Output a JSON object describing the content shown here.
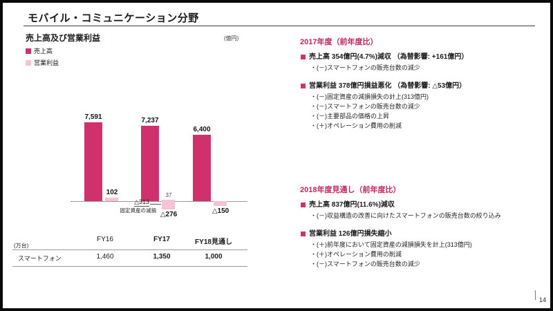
{
  "slide": {
    "title": "モバイル・コミュニケーション分野",
    "page_number": "14"
  },
  "chart": {
    "title": "売上高及び営業利益",
    "unit_label": "(億円)",
    "legend": [
      "売上高",
      "営業利益"
    ]
  },
  "chart_data": {
    "type": "bar",
    "title": "売上高及び営業利益",
    "unit": "億円",
    "categories": [
      "FY16",
      "FY17",
      "FY18見通し"
    ],
    "series": [
      {
        "name": "売上高",
        "color": "#d0316d",
        "values": [
          7591,
          7237,
          6400
        ],
        "labels": [
          "7,591",
          "7,237",
          "6,400"
        ]
      },
      {
        "name": "営業利益",
        "color": "#f5c3d2",
        "values": [
          102,
          -276,
          -150
        ],
        "labels": [
          "102",
          "△276",
          "△150"
        ]
      }
    ],
    "fy17_detail": {
      "pre_impairment_value": 37,
      "pre_impairment_label": "37",
      "impairment_label": "△313",
      "impairment_note": "固定資産の減損"
    },
    "baseline": 0,
    "grid": false,
    "legend_position": "top-left"
  },
  "unit_table": {
    "unit_label": "(万台)",
    "row_label": "スマートフォン",
    "values": [
      "1,460",
      "1,350",
      "1,000"
    ]
  },
  "right": {
    "sections": [
      {
        "heading": "2017年度（前年度比）",
        "items": [
          {
            "type": "bullet",
            "text": "売上高 354億円(4.7%)減収 （為替影響: +161億円）"
          },
          {
            "type": "sub",
            "text": "・(－)スマートフォンの販売台数の減少"
          },
          {
            "type": "bullet",
            "gap": true,
            "text": "営業利益 378億円損益悪化 （為替影響: △53億円）"
          },
          {
            "type": "sub",
            "text": "・(－)固定資産の減損損失の計上(313億円)"
          },
          {
            "type": "sub",
            "text": "・(－)スマートフォンの販売台数の減少"
          },
          {
            "type": "sub",
            "text": "・(－)主要部品の価格の上昇"
          },
          {
            "type": "sub",
            "text": "・(＋)オペレーション費用の削減"
          }
        ]
      },
      {
        "heading": "2018年度見通し（前年度比）",
        "items": [
          {
            "type": "bullet",
            "text": "売上高 837億円(11.6%)減収"
          },
          {
            "type": "sub",
            "text": "・(－)収益構造の改善に向けたスマートフォンの販売台数の絞り込み"
          },
          {
            "type": "bullet",
            "gap": true,
            "text": "営業利益 126億円損失縮小"
          },
          {
            "type": "sub",
            "text": "・(＋)前年度において固定資産の減損損失を計上(313億円)"
          },
          {
            "type": "sub",
            "text": "・(＋)オペレーション費用の削減"
          },
          {
            "type": "sub",
            "text": "・(－)スマートフォンの販売台数の減少"
          }
        ]
      }
    ]
  },
  "colors": {
    "magenta": "#d0316d",
    "light_pink": "#f5c3d2",
    "heading": "#c0245f"
  }
}
